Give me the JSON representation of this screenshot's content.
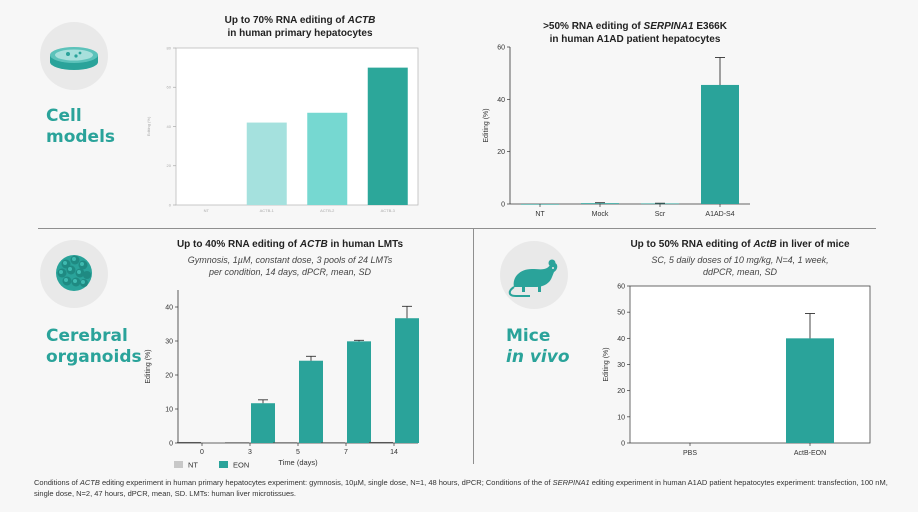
{
  "sections": {
    "cell": {
      "line1": "Cell",
      "line2": "models"
    },
    "organoids": {
      "line1": "Cerebral",
      "line2": "organoids"
    },
    "mice": {
      "line1": "Mice",
      "line2": "in vivo"
    }
  },
  "colors": {
    "accent": "#2aa39a",
    "light1": "#a5e1de",
    "light2": "#76d8d1",
    "dark": "#2ca79a",
    "nt": "#c8c8c8"
  },
  "icons": {
    "cell": "petri-dish-icon",
    "organoids": "organoid-icon",
    "mice": "mouse-icon"
  },
  "chart1": {
    "title_pre": "Up to 70% RNA editing of ",
    "title_em": "ACTB",
    "title_line2": "in human primary hepatocytes"
  },
  "chart2": {
    "title_pre": ">50% RNA editing of ",
    "title_em": "SERPINA1",
    "title_post": " E366K",
    "title_line2": "in human A1AD patient hepatocytes"
  },
  "chart3": {
    "title_pre": "Up to 40% RNA editing of ",
    "title_em": "ACTB",
    "title_post": " in human LMTs",
    "sub1": "Gymnosis, 1µM, constant dose, 3 pools of 24 LMTs",
    "sub2": "per condition, 14 days, dPCR, mean, SD"
  },
  "chart4": {
    "title_pre": "Up to 50% RNA editing of ",
    "title_em": "ActB",
    "title_post": " in liver of mice",
    "sub1": "SC, 5 daily doses of 10 mg/kg, N=4, 1 week,",
    "sub2": "ddPCR, mean, SD"
  },
  "chart_data": [
    {
      "type": "bar",
      "id": "chart1",
      "title": "Up to 70% RNA editing of ACTB in human primary hepatocytes",
      "ylabel": "Editing (%)",
      "ylim": [
        0,
        80
      ],
      "yticks": [
        0,
        20,
        40,
        60,
        80
      ],
      "categories": [
        "NT",
        "ACTB-1",
        "ACTB-2",
        "ACTB-3"
      ],
      "values": [
        0,
        42,
        47,
        70
      ],
      "colors": [
        "#a5e1de",
        "#a5e1de",
        "#76d8d1",
        "#2ca79a"
      ],
      "grid": false
    },
    {
      "type": "bar",
      "id": "chart2",
      "title": ">50% RNA editing of SERPINA1 E366K in human A1AD patient hepatocytes",
      "ylabel": "Editing (%)",
      "ylim": [
        0,
        60
      ],
      "yticks": [
        0,
        20,
        40,
        60
      ],
      "categories": [
        "NT",
        "Mock",
        "Scr",
        "A1AD-S4"
      ],
      "values": [
        0,
        0.3,
        0.2,
        45.5
      ],
      "errors": [
        0,
        0.2,
        0.1,
        10.5
      ],
      "grid": false
    },
    {
      "type": "bar",
      "id": "chart3",
      "title": "Up to 40% RNA editing of ACTB in human LMTs",
      "ylabel": "Editing (%)",
      "xlabel": "Time (days)",
      "ylim": [
        0,
        45
      ],
      "yticks": [
        0,
        10,
        20,
        30,
        40
      ],
      "categories": [
        "0",
        "3",
        "5",
        "7",
        "14"
      ],
      "series": [
        {
          "name": "NT",
          "values": [
            0.3,
            0.2,
            0.2,
            0.2,
            0.3
          ],
          "errors": [
            0,
            0,
            0,
            0,
            0
          ]
        },
        {
          "name": "EON",
          "values": [
            0,
            11.7,
            24.2,
            29.9,
            36.7
          ],
          "errors": [
            0,
            1.0,
            1.3,
            0.3,
            3.5
          ]
        }
      ],
      "legend": "bottom-left",
      "grid": false
    },
    {
      "type": "bar",
      "id": "chart4",
      "title": "Up to 50% RNA editing of ActB in liver of mice",
      "ylabel": "Editing (%)",
      "ylim": [
        0,
        60
      ],
      "yticks": [
        0,
        10,
        20,
        30,
        40,
        50,
        60
      ],
      "categories": [
        "PBS",
        "ActB-EON"
      ],
      "values": [
        0,
        40
      ],
      "errors": [
        0,
        9.5
      ],
      "grid": false
    }
  ],
  "footnote": {
    "p1": "Conditions of ",
    "e1": "ACTB",
    "p2": " editing experiment in human primary hepatocytes experiment: gymnosis, 10µM, single dose, N=1, 48 hours, dPCR; Conditions of the of ",
    "e2": "SERPINA1",
    "p3": " editing experiment in human A1AD patient hepatocytes experiment: transfection, 100 nM, single dose, N=2, 47 hours, dPCR, mean, SD. LMTs: human liver microtissues."
  }
}
